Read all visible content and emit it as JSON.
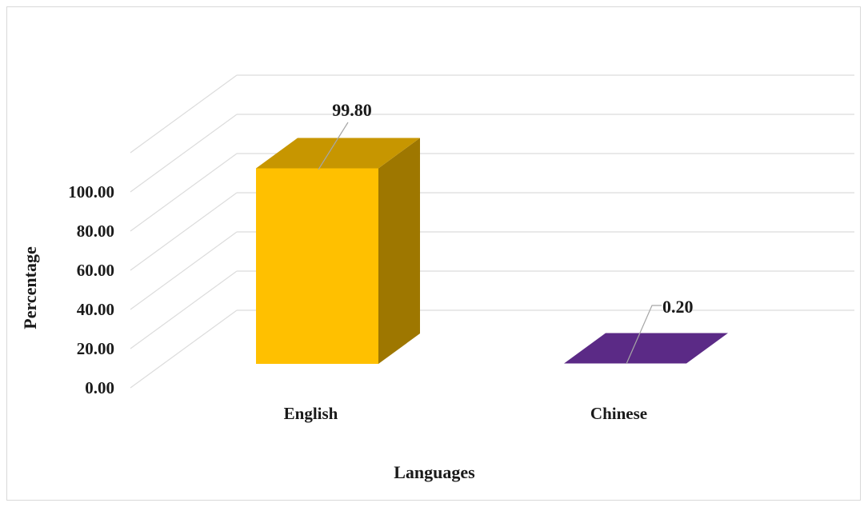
{
  "chart_data": {
    "type": "bar",
    "style": "3d-column",
    "categories": [
      "English",
      "Chinese"
    ],
    "values": [
      99.8,
      0.2
    ],
    "data_labels": [
      "99.80",
      "0.20"
    ],
    "colors": [
      "#ffc000",
      "#5b2a86"
    ],
    "xlabel": "Languages",
    "ylabel": "Percentage",
    "yticks": [
      "0.00",
      "20.00",
      "40.00",
      "60.00",
      "80.00",
      "100.00"
    ],
    "ylim": [
      0,
      100
    ],
    "grid": true,
    "legend": false
  }
}
